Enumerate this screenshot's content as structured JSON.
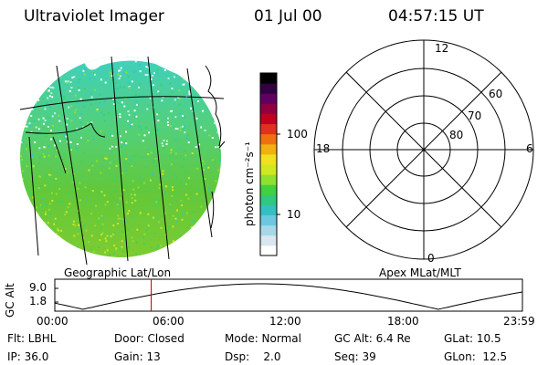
{
  "header": {
    "instrument": "Ultraviolet Imager",
    "date": "01 Jul 00",
    "time": "04:57:15 UT"
  },
  "colorbar": {
    "label": "photon cm⁻²s⁻¹",
    "ticks": [
      "100",
      "10"
    ],
    "colors": [
      "#ffffff",
      "#d9e8f0",
      "#a8d8e8",
      "#6cc8e0",
      "#34c0c0",
      "#30c880",
      "#40d040",
      "#90e030",
      "#d0e820",
      "#f0e020",
      "#f0b010",
      "#f07010",
      "#e03020",
      "#c00020",
      "#900040",
      "#600060",
      "#300040",
      "#000000"
    ]
  },
  "left_panel": {
    "caption": "Geographic Lat/Lon"
  },
  "polar_plot": {
    "caption": "Apex MLat/MLT",
    "mlt_labels": {
      "top": "12",
      "right": "6",
      "bottom": "0",
      "left": "18"
    },
    "mlat_labels": [
      "60",
      "70",
      "80"
    ]
  },
  "altitude_strip": {
    "ylabel": "GC Alt",
    "yticks": [
      "9.0",
      "1.8"
    ],
    "xticks": [
      "00:00",
      "06:00",
      "12:00",
      "18:00",
      "23:59"
    ],
    "marker_time": "04:57",
    "marker_fraction": 0.206
  },
  "info": {
    "flt": "Flt: LBHL",
    "door": "Door: Closed",
    "mode": "Mode: Normal",
    "gcalt": "GC Alt: 6.4 Re",
    "glat": "GLat:  10.5",
    "ip": "IP: 36.0",
    "gain": "Gain: 13",
    "dsp": "Dsp:    2.0",
    "seq": "Seq: 39",
    "glon": "GLon:  12.5"
  }
}
